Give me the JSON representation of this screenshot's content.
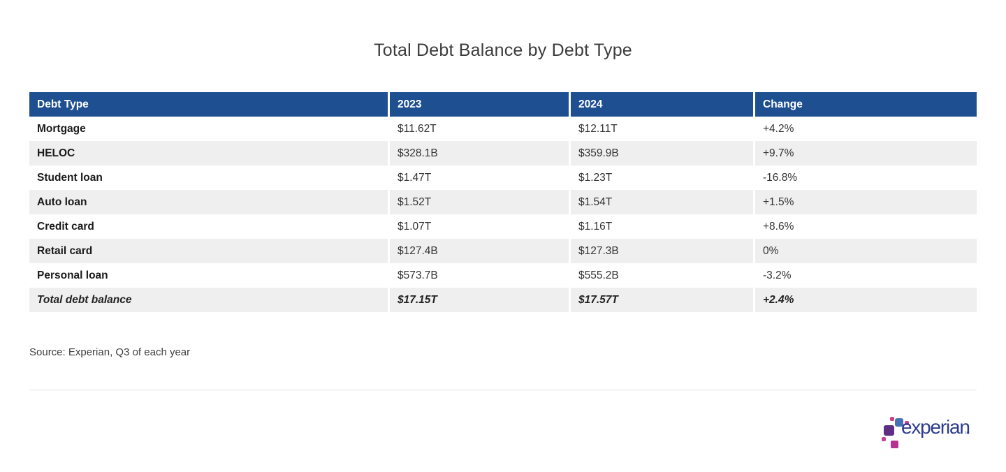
{
  "title": "Total Debt Balance by Debt Type",
  "table": {
    "headers": [
      "Debt Type",
      "2023",
      "2024",
      "Change"
    ],
    "rows": [
      {
        "debt_type": "Mortgage",
        "y2023": "$11.62T",
        "y2024": "$12.11T",
        "change": "+4.2%"
      },
      {
        "debt_type": "HELOC",
        "y2023": "$328.1B",
        "y2024": "$359.9B",
        "change": "+9.7%"
      },
      {
        "debt_type": "Student loan",
        "y2023": "$1.47T",
        "y2024": "$1.23T",
        "change": "-16.8%"
      },
      {
        "debt_type": "Auto loan",
        "y2023": "$1.52T",
        "y2024": "$1.54T",
        "change": "+1.5%"
      },
      {
        "debt_type": "Credit card",
        "y2023": "$1.07T",
        "y2024": "$1.16T",
        "change": "+8.6%"
      },
      {
        "debt_type": "Retail card",
        "y2023": "$127.4B",
        "y2024": "$127.3B",
        "change": "0%"
      },
      {
        "debt_type": "Personal loan",
        "y2023": "$573.7B",
        "y2024": "$555.2B",
        "change": "-3.2%"
      },
      {
        "debt_type": "Total debt balance",
        "y2023": "$17.15T",
        "y2024": "$17.57T",
        "change": "+2.4%"
      }
    ]
  },
  "source": "Source: Experian, Q3 of each year",
  "logo": {
    "wordmark": "experian",
    "trademark": "™"
  },
  "colors": {
    "header_bg": "#1d4f91",
    "row_stripe": "#efefef",
    "logo_blue": "#4672b4",
    "logo_purple": "#5d2e84",
    "logo_magenta": "#c9408f",
    "wordmark_color": "#2d3c8e"
  },
  "chart_data": {
    "type": "table",
    "title": "Total Debt Balance by Debt Type",
    "columns": [
      "Debt Type",
      "2023",
      "2024",
      "Change"
    ],
    "rows": [
      [
        "Mortgage",
        "$11.62T",
        "$12.11T",
        "+4.2%"
      ],
      [
        "HELOC",
        "$328.1B",
        "$359.9B",
        "+9.7%"
      ],
      [
        "Student loan",
        "$1.47T",
        "$1.23T",
        "-16.8%"
      ],
      [
        "Auto loan",
        "$1.52T",
        "$1.54T",
        "+1.5%"
      ],
      [
        "Credit card",
        "$1.07T",
        "$1.16T",
        "+8.6%"
      ],
      [
        "Retail card",
        "$127.4B",
        "$127.3B",
        "0%"
      ],
      [
        "Personal loan",
        "$573.7B",
        "$555.2B",
        "-3.2%"
      ],
      [
        "Total debt balance",
        "$17.15T",
        "$17.57T",
        "+2.4%"
      ]
    ],
    "source": "Source: Experian, Q3 of each year"
  }
}
